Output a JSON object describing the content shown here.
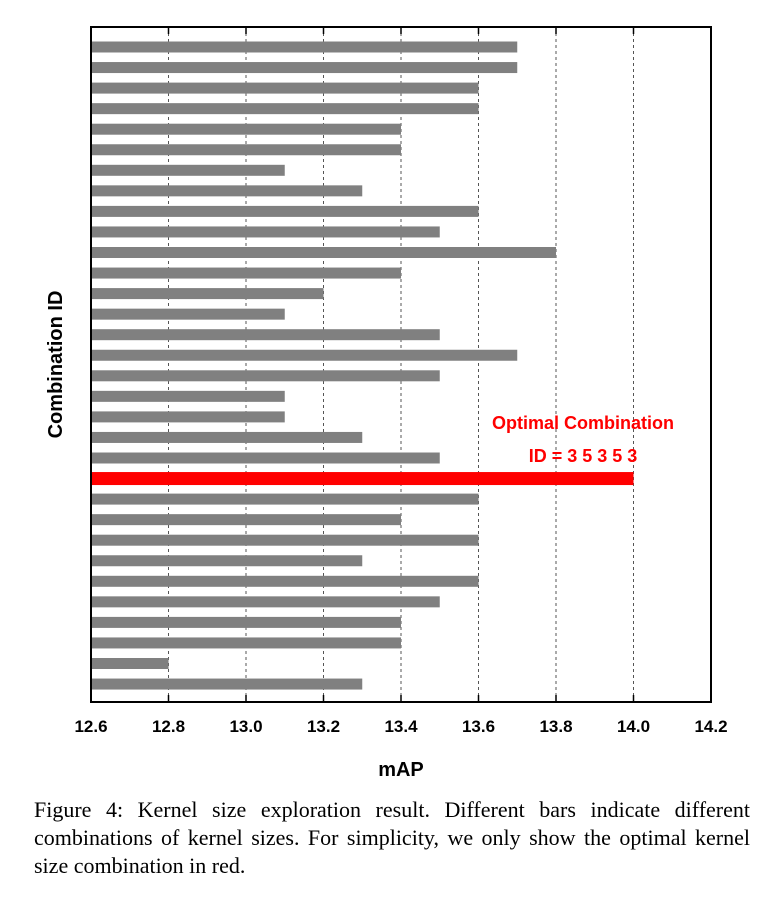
{
  "chart_data": {
    "type": "bar",
    "orientation": "horizontal",
    "xlabel": "mAP",
    "ylabel": "Combination ID",
    "xlim": [
      12.6,
      14.2
    ],
    "xticks": [
      "12.6",
      "12.8",
      "13.0",
      "13.2",
      "13.4",
      "13.6",
      "13.8",
      "14.0",
      "14.2"
    ],
    "grid": "vertical-dashed",
    "values": [
      13.7,
      13.7,
      13.6,
      13.6,
      13.4,
      13.4,
      13.1,
      13.3,
      13.6,
      13.5,
      13.8,
      13.4,
      13.2,
      13.1,
      13.5,
      13.7,
      13.5,
      13.1,
      13.1,
      13.3,
      13.5,
      14.0,
      13.6,
      13.4,
      13.6,
      13.3,
      13.6,
      13.5,
      13.4,
      13.4,
      12.8,
      13.3
    ],
    "highlight_index": 21,
    "bar_color": "#808080",
    "highlight_color": "#ff0000",
    "annotation": {
      "line1": "Optimal Combination",
      "line2": "ID = 3 5 3 5 3"
    }
  },
  "caption": "Figure 4: Kernel size exploration result. Different bars indicate different combinations of kernel sizes. For simplicity, we only show the optimal kernel size combination in red."
}
